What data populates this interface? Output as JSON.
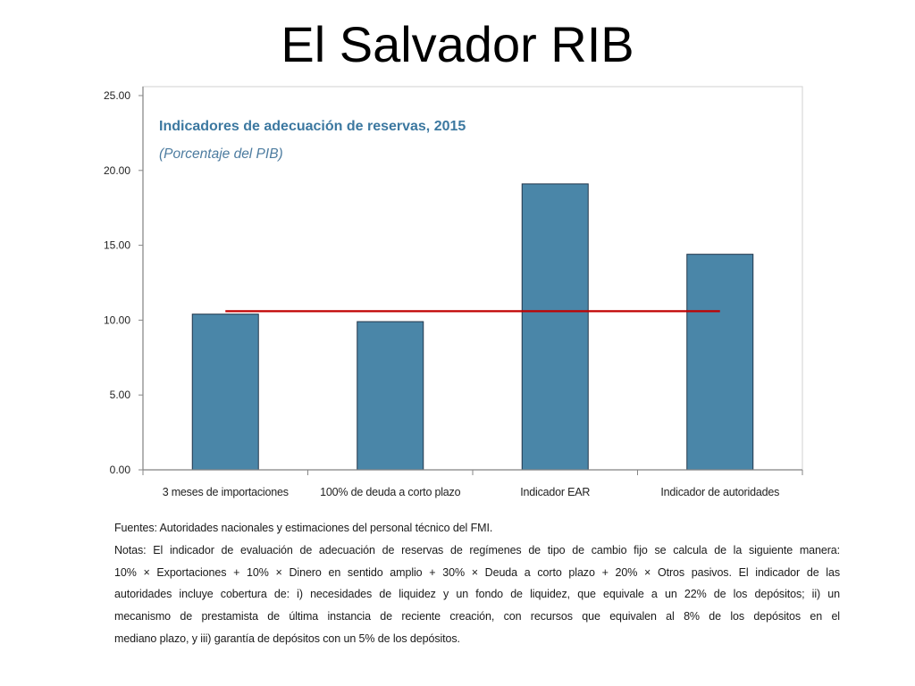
{
  "slide": {
    "title": "El Salvador RIB"
  },
  "chart_data": {
    "type": "bar",
    "title": "Indicadores de adecuación de reservas, 2015",
    "subtitle": "(Porcentaje del PIB)",
    "categories": [
      "3 meses de importaciones",
      "100% de deuda a corto plazo",
      "Indicador EAR",
      "Indicador de autoridades"
    ],
    "series": [
      {
        "type": "bar",
        "values": [
          10.4,
          9.9,
          19.1,
          14.4
        ],
        "color": "#4a86a8"
      },
      {
        "type": "line",
        "values": [
          10.6,
          10.6,
          10.6,
          10.6
        ],
        "color": "#c00000"
      }
    ],
    "y_ticks": [
      0,
      5,
      10,
      15,
      20,
      25
    ],
    "y_tick_labels": [
      "0.00",
      "5.00",
      "10.00",
      "15.00",
      "20.00",
      "25.00"
    ],
    "ylim": [
      0,
      25
    ],
    "grid": false,
    "legend": "none"
  },
  "notes": {
    "source_line": "Fuentes: Autoridades nacionales y estimaciones del personal técnico del FMI.",
    "note_lines": [
      "Notas: El indicador de evaluación de adecuación de reservas de regímenes de tipo de cambio fijo se calcula de la siguiente manera:",
      "10% × Exportaciones + 10% × Dinero en sentido amplio + 30% × Deuda a corto plazo + 20% × Otros pasivos. El indicador de las",
      "autoridades incluye cobertura de: i) necesidades de liquidez y un fondo de liquidez, que equivale a un 22% de los depósitos; ii) un",
      "mecanismo de prestamista de última instancia de reciente creación, con recursos que equivalen al 8% de los depósitos en el",
      "mediano plazo, y iii) garantía de depósitos con un 5% de los depósitos."
    ]
  }
}
